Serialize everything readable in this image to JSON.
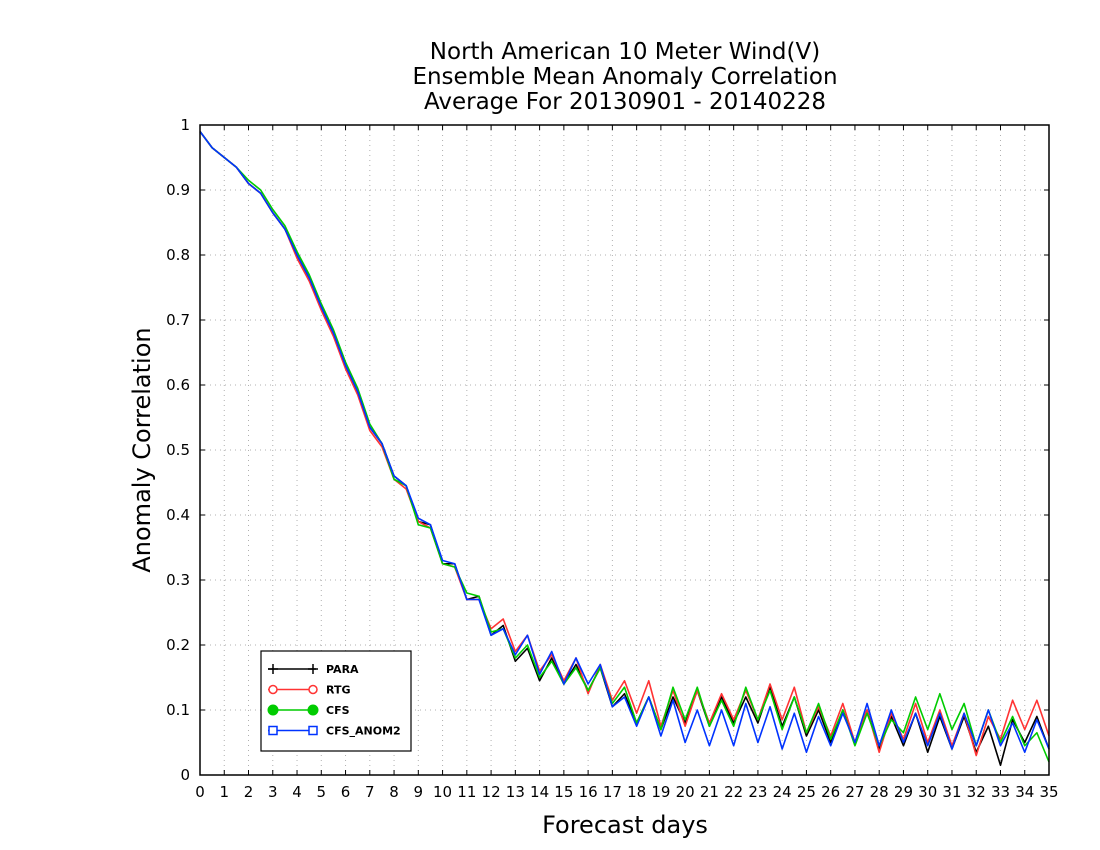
{
  "chart_data": {
    "type": "line",
    "title": [
      "North American 10 Meter Wind(V)",
      "Ensemble Mean Anomaly Correlation",
      "Average For 20130901 - 20140228"
    ],
    "xlabel": "Forecast days",
    "ylabel": "Anomaly Correlation",
    "xlim": [
      0,
      35
    ],
    "ylim": [
      0,
      1
    ],
    "x_ticks": [
      "0",
      "1",
      "2",
      "3",
      "4",
      "5",
      "6",
      "7",
      "8",
      "9",
      "10",
      "11",
      "12",
      "13",
      "14",
      "15",
      "16",
      "17",
      "18",
      "19",
      "20",
      "21",
      "22",
      "23",
      "24",
      "25",
      "26",
      "27",
      "28",
      "29",
      "30",
      "31",
      "32",
      "33",
      "34",
      "35"
    ],
    "y_ticks": [
      "0",
      "0.1",
      "0.2",
      "0.3",
      "0.4",
      "0.5",
      "0.6",
      "0.7",
      "0.8",
      "0.9",
      "1"
    ],
    "grid": true,
    "legend_position": "bottom-left",
    "x_step": 0.5,
    "series": [
      {
        "name": "PARA",
        "color": "#000000",
        "marker": "plus",
        "values": [
          0.99,
          0.965,
          0.95,
          0.935,
          0.91,
          0.895,
          0.865,
          0.84,
          0.8,
          0.765,
          0.72,
          0.68,
          0.63,
          0.59,
          0.535,
          0.51,
          0.46,
          0.445,
          0.39,
          0.385,
          0.325,
          0.325,
          0.27,
          0.275,
          0.215,
          0.23,
          0.175,
          0.195,
          0.145,
          0.18,
          0.14,
          0.17,
          0.13,
          0.165,
          0.105,
          0.125,
          0.08,
          0.12,
          0.07,
          0.12,
          0.08,
          0.13,
          0.075,
          0.12,
          0.08,
          0.12,
          0.08,
          0.135,
          0.075,
          0.12,
          0.06,
          0.1,
          0.05,
          0.1,
          0.05,
          0.1,
          0.04,
          0.09,
          0.045,
          0.095,
          0.035,
          0.09,
          0.04,
          0.09,
          0.035,
          0.075,
          0.015,
          0.085,
          0.05,
          0.09,
          0.04
        ]
      },
      {
        "name": "RTG",
        "color": "#ff3333",
        "marker": "open-circle",
        "values": [
          0.99,
          0.965,
          0.95,
          0.935,
          0.91,
          0.895,
          0.865,
          0.84,
          0.795,
          0.76,
          0.715,
          0.675,
          0.625,
          0.585,
          0.53,
          0.505,
          0.455,
          0.44,
          0.39,
          0.38,
          0.325,
          0.32,
          0.27,
          0.27,
          0.225,
          0.24,
          0.19,
          0.215,
          0.16,
          0.185,
          0.145,
          0.18,
          0.125,
          0.17,
          0.115,
          0.145,
          0.095,
          0.145,
          0.075,
          0.13,
          0.075,
          0.13,
          0.08,
          0.125,
          0.085,
          0.13,
          0.085,
          0.14,
          0.085,
          0.135,
          0.065,
          0.105,
          0.06,
          0.11,
          0.05,
          0.1,
          0.035,
          0.095,
          0.055,
          0.11,
          0.05,
          0.1,
          0.045,
          0.095,
          0.03,
          0.09,
          0.055,
          0.115,
          0.07,
          0.115,
          0.06
        ]
      },
      {
        "name": "CFS",
        "color": "#00cc00",
        "marker": "filled-circle",
        "values": [
          0.99,
          0.965,
          0.95,
          0.935,
          0.915,
          0.9,
          0.87,
          0.845,
          0.805,
          0.77,
          0.725,
          0.685,
          0.635,
          0.595,
          0.54,
          0.51,
          0.455,
          0.445,
          0.385,
          0.38,
          0.325,
          0.32,
          0.28,
          0.275,
          0.22,
          0.225,
          0.18,
          0.2,
          0.15,
          0.175,
          0.14,
          0.165,
          0.13,
          0.165,
          0.11,
          0.135,
          0.08,
          0.12,
          0.07,
          0.135,
          0.085,
          0.135,
          0.075,
          0.115,
          0.075,
          0.135,
          0.085,
          0.13,
          0.07,
          0.12,
          0.065,
          0.11,
          0.055,
          0.1,
          0.045,
          0.095,
          0.045,
          0.085,
          0.065,
          0.12,
          0.07,
          0.125,
          0.07,
          0.11,
          0.045,
          0.1,
          0.05,
          0.09,
          0.045,
          0.065,
          0.02
        ]
      },
      {
        "name": "CFS_ANOM2",
        "color": "#0033ff",
        "marker": "open-square",
        "values": [
          0.99,
          0.965,
          0.95,
          0.935,
          0.91,
          0.895,
          0.865,
          0.84,
          0.8,
          0.765,
          0.72,
          0.68,
          0.63,
          0.59,
          0.535,
          0.51,
          0.46,
          0.445,
          0.395,
          0.385,
          0.33,
          0.325,
          0.27,
          0.27,
          0.215,
          0.225,
          0.185,
          0.215,
          0.155,
          0.19,
          0.14,
          0.18,
          0.14,
          0.17,
          0.105,
          0.12,
          0.075,
          0.12,
          0.06,
          0.115,
          0.05,
          0.1,
          0.045,
          0.1,
          0.045,
          0.11,
          0.05,
          0.105,
          0.04,
          0.095,
          0.035,
          0.09,
          0.045,
          0.095,
          0.05,
          0.11,
          0.045,
          0.1,
          0.05,
          0.095,
          0.045,
          0.095,
          0.04,
          0.095,
          0.045,
          0.1,
          0.045,
          0.08,
          0.035,
          0.085,
          0.04
        ]
      }
    ]
  }
}
